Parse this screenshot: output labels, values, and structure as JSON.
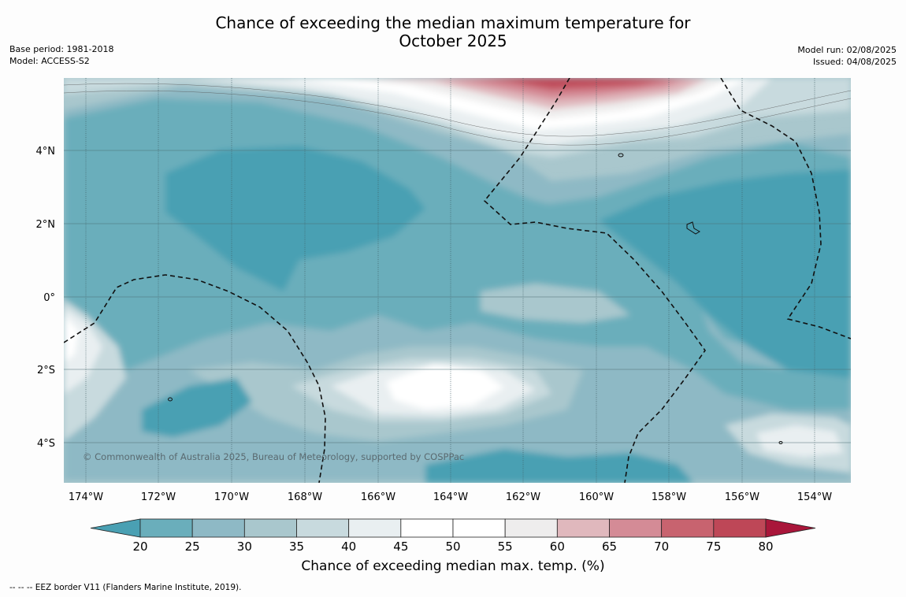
{
  "header": {
    "title_line1": "Chance of exceeding the median maximum temperature for",
    "title_line2": "October 2025",
    "base_period": "Base period: 1981-2018",
    "model": "Model: ACCESS-S2",
    "model_run": "Model run: 02/08/2025",
    "issued": "Issued: 04/08/2025"
  },
  "map": {
    "lat_labels": [
      "4°N",
      "2°N",
      "0°",
      "2°S",
      "4°S"
    ],
    "lon_labels": [
      "174°W",
      "172°W",
      "170°W",
      "168°W",
      "166°W",
      "164°W",
      "162°W",
      "160°W",
      "158°W",
      "156°W",
      "154°W"
    ],
    "copyright": "© Commonwealth of Australia 2025, Bureau of Meteorology, supported by COSPPac"
  },
  "colorbar": {
    "ticks": [
      "20",
      "25",
      "30",
      "35",
      "40",
      "45",
      "50",
      "55",
      "60",
      "65",
      "70",
      "75",
      "80"
    ],
    "colors": [
      "#4aa0b3",
      "#6aaebb",
      "#8eb9c5",
      "#a9c7cd",
      "#c8dade",
      "#e9eff1",
      "#ffffff",
      "#ffffff",
      "#eeeded",
      "#e0b8bd",
      "#d48b96",
      "#c8636f",
      "#be4757",
      "#a9163a"
    ],
    "label": "Chance of exceeding median max. temp. (%)"
  },
  "footnote": "--  --  -- EEZ border V11 (Flanders Marine Institute, 2019)."
}
